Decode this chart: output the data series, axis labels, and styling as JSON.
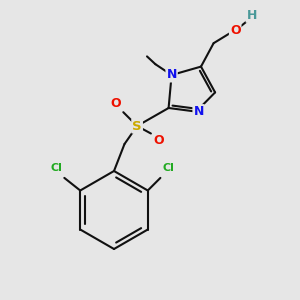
{
  "background_color": "#e6e6e6",
  "bond_color": "#111111",
  "bond_width": 1.5,
  "atom_colors": {
    "C": "#111111",
    "H": "#4a9999",
    "O": "#ee1100",
    "N": "#1111ee",
    "S": "#ccaa00",
    "Cl": "#22aa22"
  },
  "figsize": [
    3.0,
    3.0
  ],
  "dpi": 100,
  "xlim": [
    0,
    10
  ],
  "ylim": [
    0,
    10
  ]
}
